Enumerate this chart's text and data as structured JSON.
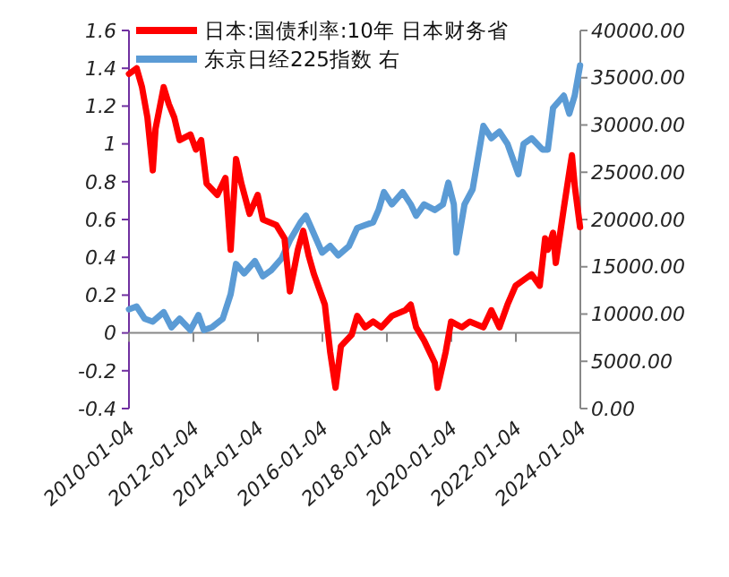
{
  "chart_data": {
    "type": "line",
    "legend": "top left",
    "xlim": [
      "2010-01-04",
      "2024-01-04"
    ],
    "xticks": [
      "2010-01-04",
      "2012-01-04",
      "2014-01-04",
      "2016-01-04",
      "2018-01-04",
      "2020-01-04",
      "2022-01-04",
      "2024-01-04"
    ],
    "ylim": [
      -0.4,
      1.6
    ],
    "yticks": [
      -0.4,
      -0.2,
      0,
      0.2,
      0.4,
      0.6,
      0.8,
      1,
      1.2,
      1.4,
      1.6
    ],
    "y2lim": [
      0,
      40000
    ],
    "y2ticks": [
      {
        "value": 0,
        "label": "0.00"
      },
      {
        "value": 5000,
        "label": "5000.00"
      },
      {
        "value": 10000,
        "label": "10000.00"
      },
      {
        "value": 15000,
        "label": "15000.00"
      },
      {
        "value": 20000,
        "label": "20000.00"
      },
      {
        "value": 25000,
        "label": "25000.00"
      },
      {
        "value": 30000,
        "label": "30000.00"
      },
      {
        "value": 35000,
        "label": "35000.00"
      },
      {
        "value": 40000,
        "label": "40000.00"
      }
    ],
    "series": [
      {
        "name": "日本:国债利率:10年 日本财务省",
        "color": "#ff0000",
        "axis": "y",
        "x": [
          "2010-01-04",
          "2010-04",
          "2010-06",
          "2010-08",
          "2010-10",
          "2010-11",
          "2011-02",
          "2011-04",
          "2011-06",
          "2011-08",
          "2011-12",
          "2012-02",
          "2012-04",
          "2012-06",
          "2012-10",
          "2013-01",
          "2013-03",
          "2013-05",
          "2013-07",
          "2013-10",
          "2014-01",
          "2014-03",
          "2014-08",
          "2014-11",
          "2015-01",
          "2015-04",
          "2015-06",
          "2015-08",
          "2015-10",
          "2016-02",
          "2016-04",
          "2016-06",
          "2016-08",
          "2016-12",
          "2017-02",
          "2017-05",
          "2017-08",
          "2017-11",
          "2018-03",
          "2018-08",
          "2018-10",
          "2018-12",
          "2019-03",
          "2019-07",
          "2019-08",
          "2019-11",
          "2020-01",
          "2020-05",
          "2020-08",
          "2021-01",
          "2021-04",
          "2021-07",
          "2021-10",
          "2022-01",
          "2022-04",
          "2022-07",
          "2022-10",
          "2022-12",
          "2023-01",
          "2023-03",
          "2023-04",
          "2023-07",
          "2023-09",
          "2023-10",
          "2023-11",
          "2024-01"
        ],
        "values": [
          1.37,
          1.4,
          1.3,
          1.14,
          0.86,
          1.08,
          1.3,
          1.21,
          1.14,
          1.02,
          1.05,
          0.97,
          1.02,
          0.79,
          0.73,
          0.82,
          0.44,
          0.92,
          0.79,
          0.63,
          0.73,
          0.6,
          0.57,
          0.5,
          0.22,
          0.44,
          0.54,
          0.41,
          0.31,
          0.15,
          -0.1,
          -0.29,
          -0.07,
          -0.01,
          0.09,
          0.03,
          0.06,
          0.03,
          0.09,
          0.12,
          0.15,
          0.03,
          -0.04,
          -0.16,
          -0.29,
          -0.1,
          0.06,
          0.03,
          0.06,
          0.03,
          0.12,
          0.03,
          0.15,
          0.25,
          0.28,
          0.31,
          0.25,
          0.5,
          0.44,
          0.53,
          0.37,
          0.66,
          0.85,
          0.94,
          0.78,
          0.56
        ]
      },
      {
        "name": "东京日经225指数 右",
        "color": "#5b9bd5",
        "axis": "y2",
        "x": [
          "2010-01-04",
          "2010-04",
          "2010-07",
          "2010-10",
          "2011-02",
          "2011-05",
          "2011-08",
          "2011-12",
          "2012-03",
          "2012-05",
          "2012-08",
          "2012-12",
          "2013-03",
          "2013-05",
          "2013-08",
          "2013-12",
          "2014-03",
          "2014-06",
          "2014-10",
          "2015-01",
          "2015-05",
          "2015-07",
          "2015-09",
          "2016-01",
          "2016-04",
          "2016-07",
          "2016-11",
          "2017-02",
          "2017-05",
          "2017-08",
          "2017-10",
          "2017-12",
          "2018-03",
          "2018-07",
          "2018-10",
          "2018-12",
          "2019-03",
          "2019-07",
          "2019-10",
          "2019-12",
          "2020-02",
          "2020-03",
          "2020-06",
          "2020-09",
          "2021-01",
          "2021-04",
          "2021-07",
          "2021-10",
          "2022-02",
          "2022-04",
          "2022-07",
          "2022-11",
          "2023-01",
          "2023-03",
          "2023-07",
          "2023-09",
          "2023-11",
          "2024-01"
        ],
        "values": [
          10500,
          10800,
          9500,
          9200,
          10200,
          8600,
          9500,
          8300,
          9900,
          8300,
          8600,
          9500,
          12100,
          15300,
          14300,
          15600,
          14000,
          14600,
          15900,
          17800,
          19700,
          20400,
          19100,
          16500,
          17200,
          16200,
          17200,
          19100,
          19400,
          19700,
          21000,
          22900,
          21600,
          22900,
          21600,
          20400,
          21600,
          21000,
          21600,
          23900,
          21600,
          16500,
          21600,
          23200,
          29900,
          28600,
          29300,
          28000,
          24800,
          28000,
          28600,
          27400,
          27400,
          31800,
          33100,
          31200,
          33100,
          36300
        ]
      }
    ]
  }
}
